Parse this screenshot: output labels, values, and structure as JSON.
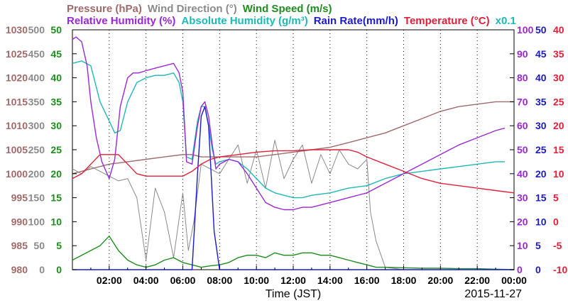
{
  "chart_data": {
    "type": "line",
    "date": "2015-11-27",
    "xlabel": "Time (JST)",
    "x_ticks": [
      "02:00",
      "04:00",
      "06:00",
      "08:00",
      "10:00",
      "12:00",
      "14:00",
      "16:00",
      "18:00",
      "20:00",
      "22:00",
      "00:00"
    ],
    "xlim_hours": [
      0,
      24
    ],
    "header_row1": [
      {
        "id": "pressure",
        "label": "Pressure (hPa)",
        "color": "#a06a6a"
      },
      {
        "id": "wind_direction",
        "label": "Wind Direction (°)",
        "color": "#8a8a8a"
      },
      {
        "id": "wind_speed",
        "label": "Wind Speed (m/s)",
        "color": "#1e8c1e"
      }
    ],
    "header_row2": [
      {
        "id": "relative_humidity",
        "label": "Relative Humidity (%)",
        "color": "#9a28d6"
      },
      {
        "id": "absolute_humidity",
        "label": "Absolute Humidity (g/m³)",
        "color": "#1fb8b8"
      },
      {
        "id": "rain_rate",
        "label": "Rain Rate(mm/h)",
        "color": "#1a1acc"
      },
      {
        "id": "temperature",
        "label": "Temperature (°C)",
        "color": "#e0203a"
      },
      {
        "id": "x01",
        "label": "x0.1",
        "color": "#1fb8b8"
      }
    ],
    "axes": {
      "pressure": {
        "ticks": [
          "1030",
          "1025",
          "1020",
          "1015",
          "1010",
          "1005",
          "1000",
          "995",
          "990",
          "985",
          "980"
        ],
        "range": [
          980,
          1030
        ],
        "color": "#a06a6a"
      },
      "wind_direction": {
        "ticks": [
          "500",
          "450",
          "400",
          "350",
          "300",
          "250",
          "200",
          "150",
          "100",
          "50",
          "0"
        ],
        "range": [
          0,
          500
        ],
        "color": "#8a8a8a"
      },
      "wind_speed": {
        "ticks": [
          "50",
          "45",
          "40",
          "35",
          "30",
          "25",
          "20",
          "15",
          "10",
          "5",
          "0"
        ],
        "range": [
          0,
          50
        ],
        "color": "#1e8c1e"
      },
      "humidity": {
        "ticks": [
          "100",
          "90",
          "80",
          "70",
          "60",
          "50",
          "40",
          "30",
          "20",
          "10",
          "0"
        ],
        "range": [
          0,
          100
        ],
        "color": "#9a28d6"
      },
      "rain_rate": {
        "ticks": [
          "50",
          "45",
          "40",
          "35",
          "30",
          "25",
          "20",
          "15",
          "10",
          "5",
          "0"
        ],
        "range": [
          0,
          50
        ],
        "color": "#1a1acc"
      },
      "temperature": {
        "ticks": [
          "40",
          "35",
          "30",
          "25",
          "20",
          "15",
          "10",
          "5",
          "0",
          "-5",
          "-10"
        ],
        "range": [
          -10,
          40
        ],
        "color": "#e0203a"
      }
    },
    "series": [
      {
        "name": "Pressure (hPa)",
        "axis": "pressure",
        "color": "#a06a6a",
        "x": [
          0,
          1,
          2,
          3,
          4,
          5,
          6,
          6.5,
          7,
          8,
          9,
          10,
          11,
          12,
          13,
          14,
          15,
          16,
          17,
          18,
          19,
          20,
          21,
          22,
          23,
          24
        ],
        "y": [
          1000,
          1001,
          1002,
          1002.5,
          1003,
          1003.5,
          1004,
          1004,
          1003.5,
          1003.5,
          1003.5,
          1003.5,
          1004,
          1004.5,
          1005,
          1005.5,
          1006.5,
          1007.5,
          1008.5,
          1010,
          1011.5,
          1013,
          1014,
          1014.5,
          1015,
          1015
        ]
      },
      {
        "name": "Wind Direction (°)",
        "axis": "wind_direction",
        "color": "#8a8a8a",
        "x": [
          0,
          0.5,
          1,
          1.5,
          2,
          2.5,
          3,
          3.5,
          4,
          4.5,
          5,
          5.5,
          6,
          6.3,
          6.6,
          7,
          7.5,
          8,
          8.5,
          9,
          9.5,
          10,
          10.5,
          11,
          11.5,
          12,
          12.5,
          13,
          13.5,
          14,
          14.5,
          15,
          15.5,
          16,
          16.2,
          16.5,
          17,
          18,
          20,
          22,
          24
        ],
        "y": [
          210,
          200,
          215,
          205,
          195,
          185,
          190,
          150,
          20,
          170,
          120,
          25,
          160,
          40,
          100,
          220,
          210,
          200,
          230,
          260,
          180,
          250,
          170,
          270,
          190,
          230,
          260,
          180,
          240,
          200,
          250,
          220,
          210,
          230,
          120,
          60,
          5,
          0,
          0,
          0,
          0
        ]
      },
      {
        "name": "Wind Speed (m/s)",
        "axis": "wind_speed",
        "color": "#1e8c1e",
        "x": [
          0,
          0.5,
          1,
          1.5,
          2,
          2.5,
          3,
          3.5,
          4,
          4.5,
          5,
          5.5,
          6,
          6.5,
          7,
          7.5,
          8,
          8.5,
          9,
          9.5,
          10,
          10.5,
          11,
          11.5,
          12,
          12.5,
          13,
          13.5,
          14,
          14.5,
          15,
          15.5,
          16,
          16.5,
          17,
          18,
          19,
          20,
          21,
          22,
          23,
          24
        ],
        "y": [
          2,
          3,
          4,
          5,
          7,
          4,
          2,
          1,
          0.5,
          1,
          2,
          2.5,
          1.5,
          1,
          0.5,
          0.8,
          1,
          1.5,
          2.5,
          3,
          3,
          2.5,
          3.5,
          3,
          3,
          3.5,
          3.5,
          3,
          3,
          2.5,
          2,
          1.5,
          1,
          0.5,
          0.5,
          0.4,
          0.3,
          0.3,
          0.2,
          0.2,
          0.1,
          0
        ]
      },
      {
        "name": "Relative Humidity (%)",
        "axis": "humidity",
        "color": "#9a28d6",
        "x": [
          0,
          0.2,
          0.5,
          0.8,
          1,
          1.3,
          1.6,
          2,
          2.3,
          2.6,
          3,
          3.3,
          3.6,
          4,
          4.5,
          5,
          5.5,
          5.8,
          6,
          6.2,
          6.5,
          6.8,
          7,
          7.2,
          7.4,
          7.6,
          7.8,
          8,
          8.5,
          9,
          9.5,
          10,
          10.5,
          11,
          11.5,
          12,
          12.5,
          13,
          14,
          15,
          16,
          17,
          18,
          19,
          20,
          21,
          22,
          23,
          23.5
        ],
        "y": [
          96,
          97,
          95,
          85,
          70,
          55,
          45,
          38,
          46,
          68,
          80,
          82,
          82,
          83,
          84,
          85,
          86,
          82,
          74,
          45,
          44,
          60,
          68,
          70,
          64,
          52,
          42,
          44,
          46,
          45,
          40,
          34,
          28,
          26,
          25,
          25,
          26,
          26,
          28,
          30,
          32,
          36,
          40,
          44,
          48,
          52,
          55,
          58,
          59
        ]
      },
      {
        "name": "Absolute Humidity (g/m³)",
        "axis": "humidity",
        "color": "#1fb8b8",
        "x": [
          0,
          0.5,
          1,
          1.5,
          2,
          2.3,
          2.6,
          3,
          3.5,
          4,
          4.5,
          5,
          5.5,
          5.8,
          6,
          6.2,
          6.5,
          6.8,
          7,
          7.2,
          7.4,
          7.6,
          7.8,
          8,
          8.5,
          9,
          9.5,
          10,
          10.5,
          11,
          11.5,
          12,
          12.5,
          13,
          14,
          15,
          16,
          17,
          18,
          19,
          20,
          21,
          22,
          23,
          23.5
        ],
        "y": [
          86,
          87,
          85,
          70,
          62,
          57,
          58,
          70,
          78,
          80,
          81,
          81,
          82,
          78,
          70,
          47,
          46,
          62,
          68,
          68,
          60,
          50,
          44,
          45,
          46,
          45,
          42,
          38,
          34,
          32,
          31,
          30,
          30,
          31,
          32,
          34,
          35,
          38,
          40,
          41,
          42,
          43,
          44,
          45,
          45
        ]
      },
      {
        "name": "Rain Rate(mm/h)",
        "axis": "rain_rate",
        "color": "#1a1acc",
        "x": [
          0,
          6,
          6.5,
          6.8,
          7,
          7.2,
          7.4,
          7.7,
          8,
          24
        ],
        "y": [
          0,
          0,
          0,
          20,
          32,
          34,
          30,
          8,
          0,
          0
        ]
      },
      {
        "name": "Temperature (°C)",
        "axis": "temperature",
        "color": "#e0203a",
        "x": [
          0,
          0.5,
          1,
          1.5,
          2,
          2.5,
          3,
          3.5,
          4,
          4.5,
          5,
          5.5,
          6,
          6.5,
          7,
          7.5,
          8,
          9,
          10,
          11,
          12,
          13,
          14,
          15,
          15.5,
          16,
          17,
          18,
          19,
          20,
          21,
          22,
          23,
          24
        ],
        "y": [
          9,
          10,
          12,
          14,
          14,
          14,
          12,
          10,
          9.5,
          9.5,
          9.5,
          9.5,
          9.5,
          10.5,
          12,
          13,
          13.5,
          14,
          14.5,
          14.8,
          14.8,
          15,
          15,
          15,
          14.5,
          13.5,
          12,
          10.5,
          9,
          8,
          7.5,
          7,
          6.5,
          6
        ]
      }
    ]
  }
}
